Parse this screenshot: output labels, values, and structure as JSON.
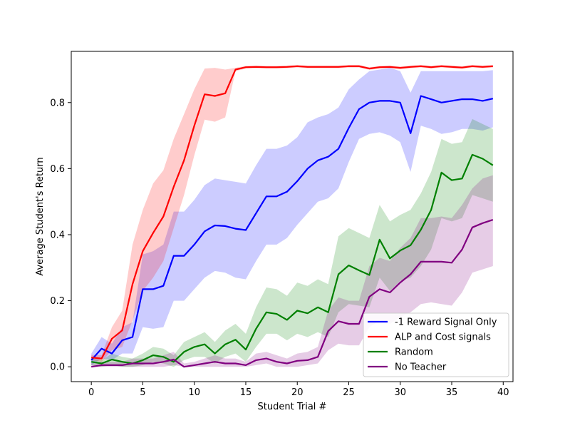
{
  "chart_data": {
    "type": "line",
    "title": "",
    "xlabel": "Student Trial #",
    "ylabel": "Average Student's Return",
    "xlim": [
      -1.95,
      40.95
    ],
    "ylim": [
      -0.045,
      0.955
    ],
    "xticks": [
      0,
      5,
      10,
      15,
      20,
      25,
      30,
      35,
      40
    ],
    "yticks": [
      0.0,
      0.2,
      0.4,
      0.6,
      0.8
    ],
    "xtick_labels": [
      "0",
      "5",
      "10",
      "15",
      "20",
      "25",
      "30",
      "35",
      "40"
    ],
    "ytick_labels": [
      "0.0",
      "0.2",
      "0.4",
      "0.6",
      "0.8"
    ],
    "grid": false,
    "legend_position": "lower-right",
    "x": [
      0,
      1,
      2,
      3,
      4,
      5,
      6,
      7,
      8,
      9,
      10,
      11,
      12,
      13,
      14,
      15,
      16,
      17,
      18,
      19,
      20,
      21,
      22,
      23,
      24,
      25,
      26,
      27,
      28,
      29,
      30,
      31,
      32,
      33,
      34,
      35,
      36,
      37,
      38,
      39
    ],
    "series": [
      {
        "name": "-1 Reward Signal Only",
        "color": "#0000ff",
        "band_color": "#0000ff",
        "values": [
          0.02,
          0.055,
          0.04,
          0.08,
          0.09,
          0.235,
          0.235,
          0.245,
          0.336,
          0.336,
          0.37,
          0.41,
          0.428,
          0.426,
          0.418,
          0.414,
          0.465,
          0.516,
          0.516,
          0.53,
          0.562,
          0.6,
          0.625,
          0.636,
          0.66,
          0.723,
          0.78,
          0.8,
          0.805,
          0.805,
          0.8,
          0.707,
          0.82,
          0.81,
          0.8,
          0.805,
          0.81,
          0.81,
          0.805,
          0.812
        ],
        "lower": [
          0.005,
          0.025,
          0.02,
          0.04,
          0.04,
          0.12,
          0.115,
          0.12,
          0.2,
          0.2,
          0.235,
          0.27,
          0.29,
          0.285,
          0.27,
          0.265,
          0.32,
          0.37,
          0.37,
          0.39,
          0.43,
          0.465,
          0.5,
          0.51,
          0.54,
          0.62,
          0.69,
          0.705,
          0.71,
          0.7,
          0.68,
          0.59,
          0.73,
          0.72,
          0.705,
          0.71,
          0.72,
          0.72,
          0.715,
          0.725
        ],
        "upper": [
          0.04,
          0.09,
          0.07,
          0.12,
          0.135,
          0.34,
          0.35,
          0.37,
          0.47,
          0.47,
          0.505,
          0.55,
          0.57,
          0.565,
          0.56,
          0.555,
          0.61,
          0.66,
          0.66,
          0.67,
          0.695,
          0.74,
          0.755,
          0.765,
          0.785,
          0.84,
          0.87,
          0.895,
          0.9,
          0.905,
          0.895,
          0.83,
          0.895,
          0.895,
          0.895,
          0.895,
          0.895,
          0.895,
          0.895,
          0.898
        ]
      },
      {
        "name": "ALP and Cost signals",
        "color": "#ff0000",
        "band_color": "#ff0000",
        "values": [
          0.028,
          0.025,
          0.085,
          0.11,
          0.25,
          0.35,
          0.405,
          0.455,
          0.545,
          0.625,
          0.73,
          0.825,
          0.82,
          0.828,
          0.9,
          0.907,
          0.908,
          0.907,
          0.907,
          0.908,
          0.91,
          0.908,
          0.908,
          0.908,
          0.908,
          0.91,
          0.91,
          0.903,
          0.907,
          0.908,
          0.905,
          0.908,
          0.91,
          0.907,
          0.91,
          0.908,
          0.906,
          0.91,
          0.908,
          0.91
        ],
        "lower": [
          0.02,
          0.015,
          0.05,
          0.06,
          0.14,
          0.23,
          0.27,
          0.32,
          0.42,
          0.52,
          0.64,
          0.748,
          0.742,
          0.755,
          0.895,
          0.903,
          0.904,
          0.903,
          0.903,
          0.904,
          0.906,
          0.904,
          0.904,
          0.904,
          0.904,
          0.906,
          0.906,
          0.899,
          0.903,
          0.904,
          0.901,
          0.904,
          0.906,
          0.903,
          0.906,
          0.904,
          0.902,
          0.906,
          0.904,
          0.906
        ],
        "upper": [
          0.036,
          0.035,
          0.12,
          0.17,
          0.37,
          0.475,
          0.555,
          0.595,
          0.69,
          0.765,
          0.84,
          0.903,
          0.905,
          0.9,
          0.905,
          0.911,
          0.912,
          0.911,
          0.911,
          0.912,
          0.914,
          0.912,
          0.912,
          0.912,
          0.912,
          0.914,
          0.914,
          0.907,
          0.911,
          0.912,
          0.909,
          0.912,
          0.914,
          0.911,
          0.914,
          0.912,
          0.91,
          0.914,
          0.912,
          0.914
        ]
      },
      {
        "name": "Random",
        "color": "#008000",
        "band_color": "#008000",
        "values": [
          0.015,
          0.01,
          0.022,
          0.015,
          0.01,
          0.02,
          0.035,
          0.03,
          0.015,
          0.045,
          0.06,
          0.068,
          0.04,
          0.068,
          0.082,
          0.052,
          0.115,
          0.165,
          0.16,
          0.142,
          0.17,
          0.162,
          0.18,
          0.165,
          0.28,
          0.307,
          0.292,
          0.278,
          0.385,
          0.328,
          0.352,
          0.368,
          0.415,
          0.475,
          0.588,
          0.565,
          0.57,
          0.642,
          0.63,
          0.61
        ],
        "lower": [
          0.005,
          0.0,
          0.005,
          0.0,
          0.0,
          0.005,
          0.015,
          0.01,
          0.0,
          0.02,
          0.03,
          0.03,
          0.01,
          0.03,
          0.04,
          0.015,
          0.06,
          0.1,
          0.1,
          0.08,
          0.1,
          0.09,
          0.105,
          0.09,
          0.165,
          0.19,
          0.185,
          0.18,
          0.27,
          0.23,
          0.26,
          0.27,
          0.305,
          0.355,
          0.45,
          0.44,
          0.45,
          0.52,
          0.51,
          0.5
        ],
        "upper": [
          0.025,
          0.02,
          0.04,
          0.03,
          0.025,
          0.04,
          0.06,
          0.055,
          0.035,
          0.075,
          0.09,
          0.105,
          0.075,
          0.11,
          0.13,
          0.1,
          0.18,
          0.24,
          0.235,
          0.215,
          0.255,
          0.245,
          0.265,
          0.25,
          0.395,
          0.42,
          0.405,
          0.39,
          0.49,
          0.44,
          0.46,
          0.475,
          0.525,
          0.59,
          0.69,
          0.675,
          0.68,
          0.75,
          0.735,
          0.72
        ]
      },
      {
        "name": "No Teacher",
        "color": "#800080",
        "band_color": "#800080",
        "values": [
          0.0,
          0.005,
          0.005,
          0.005,
          0.01,
          0.01,
          0.01,
          0.015,
          0.022,
          0.0,
          0.005,
          0.01,
          0.015,
          0.01,
          0.01,
          0.005,
          0.02,
          0.025,
          0.015,
          0.01,
          0.018,
          0.02,
          0.03,
          0.108,
          0.138,
          0.13,
          0.13,
          0.212,
          0.235,
          0.225,
          0.255,
          0.28,
          0.318,
          0.318,
          0.318,
          0.315,
          0.355,
          0.422,
          0.435,
          0.445
        ],
        "lower": [
          0.0,
          0.0,
          0.0,
          0.0,
          0.0,
          0.0,
          0.0,
          0.0,
          0.005,
          0.0,
          0.0,
          0.0,
          0.0,
          0.0,
          0.0,
          0.0,
          0.005,
          0.01,
          0.0,
          0.0,
          0.0,
          0.005,
          0.01,
          0.05,
          0.07,
          0.065,
          0.065,
          0.12,
          0.14,
          0.13,
          0.15,
          0.165,
          0.19,
          0.195,
          0.19,
          0.185,
          0.225,
          0.285,
          0.295,
          0.305
        ],
        "upper": [
          0.01,
          0.015,
          0.015,
          0.015,
          0.025,
          0.025,
          0.025,
          0.035,
          0.045,
          0.01,
          0.015,
          0.025,
          0.035,
          0.025,
          0.025,
          0.015,
          0.04,
          0.045,
          0.035,
          0.025,
          0.04,
          0.045,
          0.06,
          0.17,
          0.21,
          0.2,
          0.2,
          0.305,
          0.33,
          0.32,
          0.36,
          0.39,
          0.45,
          0.45,
          0.455,
          0.45,
          0.49,
          0.54,
          0.57,
          0.58
        ]
      }
    ]
  }
}
